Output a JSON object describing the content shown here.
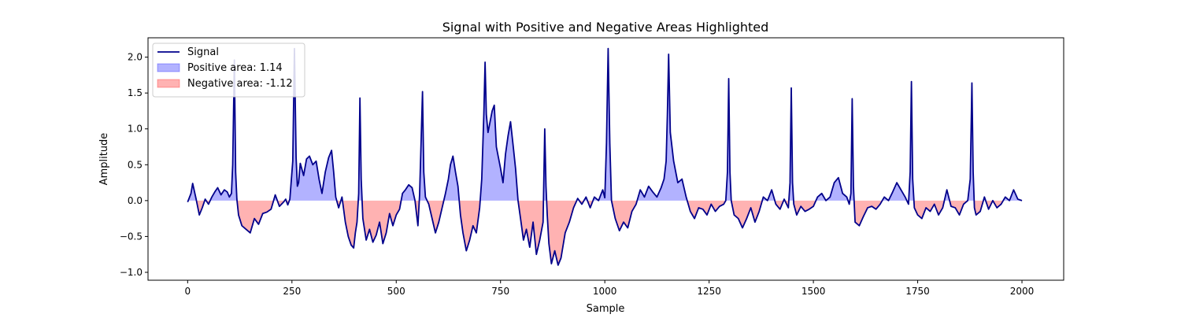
{
  "chart_data": {
    "type": "area",
    "title": "Signal with Positive and Negative Areas Highlighted",
    "xlabel": "Sample",
    "ylabel": "Amplitude",
    "xlim": [
      -95,
      2100
    ],
    "ylim": [
      -1.11,
      2.27
    ],
    "xticks": [
      0,
      250,
      500,
      750,
      1000,
      1250,
      1500,
      1750,
      2000
    ],
    "xtick_labels": [
      "0",
      "250",
      "500",
      "750",
      "1000",
      "1250",
      "1500",
      "1750",
      "2000"
    ],
    "yticks": [
      -1.0,
      -0.5,
      0.0,
      0.5,
      1.0,
      1.5,
      2.0
    ],
    "ytick_labels": [
      "−1.0",
      "−0.5",
      "0.0",
      "0.5",
      "1.0",
      "1.5",
      "2.0"
    ],
    "grid": false,
    "legend_position": "top-left",
    "legend": [
      {
        "label": "Signal",
        "kind": "line",
        "color": "#00008b"
      },
      {
        "label": "Positive area: 1.14",
        "kind": "patch",
        "color": "#0000ff"
      },
      {
        "label": "Negative area: -1.12",
        "kind": "patch",
        "color": "#ff0000"
      }
    ],
    "colors": {
      "signal": "#00008b",
      "positive_fill": "#0000ff",
      "negative_fill": "#ff0000"
    },
    "series": [
      {
        "name": "Signal",
        "x": [
          0,
          8,
          12,
          20,
          28,
          35,
          42,
          50,
          58,
          65,
          72,
          80,
          88,
          95,
          100,
          105,
          108,
          112,
          115,
          118,
          122,
          130,
          140,
          150,
          160,
          170,
          180,
          190,
          200,
          210,
          220,
          230,
          235,
          240,
          245,
          252,
          256,
          260,
          263,
          266,
          270,
          278,
          285,
          292,
          300,
          308,
          315,
          322,
          330,
          338,
          345,
          350,
          355,
          362,
          370,
          378,
          385,
          392,
          398,
          402,
          406,
          410,
          413,
          416,
          420,
          428,
          436,
          444,
          452,
          460,
          468,
          476,
          484,
          492,
          500,
          508,
          515,
          522,
          530,
          538,
          545,
          552,
          556,
          560,
          563,
          566,
          570,
          578,
          586,
          594,
          602,
          610,
          618,
          625,
          630,
          636,
          642,
          648,
          654,
          660,
          668,
          676,
          684,
          692,
          700,
          705,
          710,
          713,
          716,
          720,
          725,
          730,
          735,
          740,
          745,
          750,
          756,
          762,
          768,
          774,
          780,
          786,
          792,
          798,
          805,
          812,
          820,
          828,
          836,
          844,
          852,
          856,
          859,
          862,
          866,
          872,
          880,
          888,
          895,
          905,
          915,
          925,
          935,
          945,
          955,
          965,
          975,
          985,
          995,
          1000,
          1004,
          1008,
          1012,
          1016,
          1025,
          1035,
          1045,
          1055,
          1065,
          1075,
          1085,
          1095,
          1105,
          1115,
          1125,
          1135,
          1142,
          1147,
          1150,
          1153,
          1157,
          1165,
          1175,
          1185,
          1195,
          1205,
          1215,
          1225,
          1235,
          1245,
          1255,
          1265,
          1275,
          1285,
          1290,
          1294,
          1297,
          1300,
          1303,
          1310,
          1320,
          1330,
          1340,
          1350,
          1360,
          1370,
          1380,
          1390,
          1400,
          1410,
          1420,
          1430,
          1440,
          1444,
          1447,
          1450,
          1453,
          1460,
          1470,
          1480,
          1490,
          1500,
          1510,
          1520,
          1530,
          1540,
          1550,
          1560,
          1570,
          1580,
          1586,
          1590,
          1593,
          1596,
          1600,
          1610,
          1620,
          1630,
          1640,
          1650,
          1660,
          1670,
          1680,
          1690,
          1700,
          1710,
          1720,
          1728,
          1732,
          1735,
          1738,
          1742,
          1750,
          1760,
          1770,
          1780,
          1790,
          1800,
          1810,
          1820,
          1830,
          1840,
          1850,
          1860,
          1870,
          1876,
          1880,
          1883,
          1886,
          1890,
          1900,
          1910,
          1920,
          1930,
          1940,
          1950,
          1960,
          1970,
          1980,
          1990,
          2000
        ],
        "y": [
          -0.02,
          0.1,
          0.24,
          0.03,
          -0.2,
          -0.1,
          0.02,
          -0.05,
          0.05,
          0.12,
          0.18,
          0.08,
          0.15,
          0.12,
          0.05,
          0.1,
          0.5,
          1.96,
          0.4,
          0.02,
          -0.2,
          -0.35,
          -0.4,
          -0.45,
          -0.25,
          -0.33,
          -0.18,
          -0.16,
          -0.12,
          0.08,
          -0.08,
          -0.02,
          0.02,
          -0.06,
          0.02,
          0.55,
          2.12,
          0.6,
          0.2,
          0.25,
          0.52,
          0.35,
          0.58,
          0.62,
          0.5,
          0.55,
          0.3,
          0.1,
          0.4,
          0.6,
          0.7,
          0.4,
          0.05,
          -0.1,
          0.05,
          -0.3,
          -0.5,
          -0.62,
          -0.66,
          -0.45,
          -0.3,
          0.1,
          1.43,
          0.3,
          -0.25,
          -0.55,
          -0.4,
          -0.58,
          -0.48,
          -0.3,
          -0.6,
          -0.45,
          -0.18,
          -0.35,
          -0.2,
          -0.12,
          0.1,
          0.15,
          0.22,
          0.18,
          0.0,
          -0.35,
          0.08,
          0.9,
          1.52,
          0.4,
          0.05,
          -0.05,
          -0.25,
          -0.45,
          -0.3,
          -0.1,
          0.1,
          0.3,
          0.5,
          0.62,
          0.4,
          0.2,
          -0.2,
          -0.45,
          -0.7,
          -0.55,
          -0.35,
          -0.45,
          -0.1,
          0.3,
          1.2,
          1.93,
          1.2,
          0.95,
          1.1,
          1.25,
          1.33,
          0.75,
          0.6,
          0.45,
          0.25,
          0.65,
          0.9,
          1.1,
          0.78,
          0.45,
          0.0,
          -0.25,
          -0.55,
          -0.4,
          -0.65,
          -0.3,
          -0.75,
          -0.55,
          -0.3,
          1.0,
          0.2,
          -0.2,
          -0.6,
          -0.88,
          -0.7,
          -0.9,
          -0.8,
          -0.45,
          -0.3,
          -0.1,
          0.03,
          -0.05,
          0.05,
          -0.1,
          0.05,
          0.0,
          0.15,
          0.04,
          0.8,
          2.12,
          0.8,
          0.0,
          -0.25,
          -0.42,
          -0.3,
          -0.38,
          -0.15,
          -0.05,
          0.15,
          0.05,
          0.2,
          0.12,
          0.05,
          0.18,
          0.3,
          0.55,
          1.2,
          2.04,
          0.95,
          0.55,
          0.25,
          0.3,
          0.05,
          -0.15,
          -0.25,
          -0.1,
          -0.12,
          -0.2,
          -0.05,
          -0.15,
          -0.08,
          -0.05,
          0.0,
          0.4,
          1.7,
          0.4,
          0.0,
          -0.2,
          -0.25,
          -0.38,
          -0.25,
          -0.1,
          -0.3,
          -0.15,
          0.05,
          0.0,
          0.15,
          -0.05,
          -0.12,
          0.02,
          -0.1,
          0.25,
          1.57,
          0.25,
          -0.05,
          -0.2,
          -0.08,
          -0.15,
          -0.12,
          -0.08,
          0.05,
          0.1,
          0.0,
          0.05,
          0.25,
          0.32,
          0.1,
          0.05,
          -0.05,
          0.1,
          1.42,
          0.2,
          -0.3,
          -0.35,
          -0.22,
          -0.1,
          -0.08,
          -0.12,
          -0.05,
          0.05,
          0.0,
          0.12,
          0.25,
          0.15,
          0.05,
          -0.05,
          0.4,
          1.66,
          0.3,
          -0.1,
          -0.2,
          -0.25,
          -0.1,
          -0.15,
          -0.05,
          -0.2,
          -0.1,
          0.15,
          -0.08,
          -0.1,
          -0.2,
          -0.05,
          0.0,
          0.3,
          1.64,
          0.4,
          -0.1,
          -0.2,
          -0.15,
          0.05,
          -0.12,
          0.0,
          -0.1,
          -0.05,
          0.05,
          0.0,
          0.15,
          0.02,
          0.0
        ]
      }
    ]
  }
}
